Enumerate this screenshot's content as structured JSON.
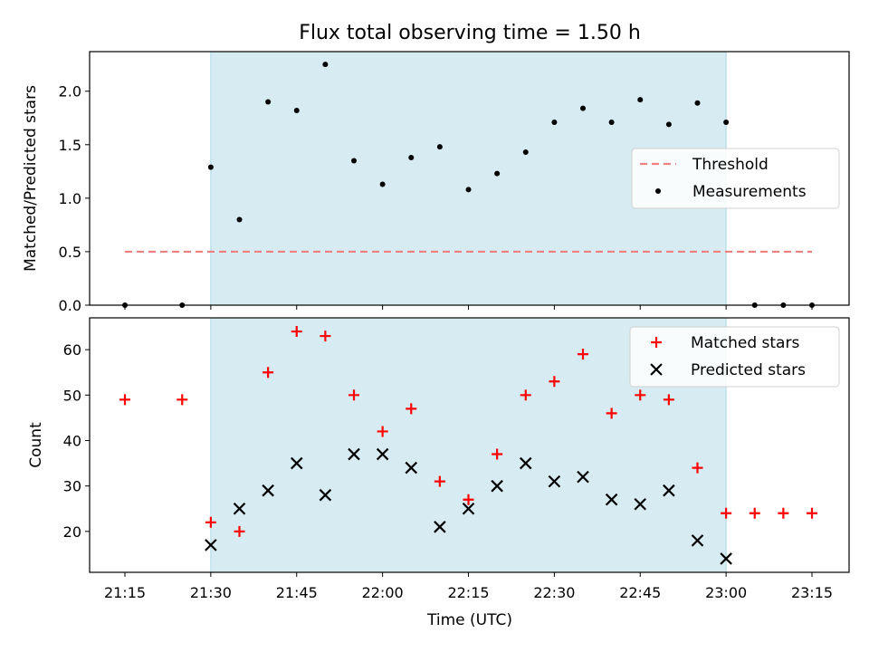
{
  "chart_data": {
    "type": "scatter",
    "title": "Flux total observing time = 1.50 h",
    "xlabel": "Time (UTC)",
    "x_ticks": [
      "21:15",
      "21:30",
      "21:45",
      "22:00",
      "22:15",
      "22:30",
      "22:45",
      "23:00",
      "23:15"
    ],
    "observing_window": {
      "start": "21:30",
      "end": "23:00",
      "color": "#add8e6"
    },
    "panels": [
      {
        "id": "ratio",
        "ylabel": "Matched/Predicted stars",
        "ylim": [
          0,
          2.37
        ],
        "y_ticks": [
          "0.0",
          "0.5",
          "1.0",
          "1.5",
          "2.0"
        ],
        "legend_position": "center-right",
        "series": [
          {
            "name": "Threshold",
            "kind": "line",
            "color": "#f08080",
            "dash": true,
            "x": [
              "21:15",
              "23:15"
            ],
            "y": [
              0.5,
              0.5
            ]
          },
          {
            "name": "Measurements",
            "kind": "dot",
            "color": "#000000",
            "x": [
              "21:15",
              "21:25",
              "21:30",
              "21:35",
              "21:40",
              "21:45",
              "21:50",
              "21:55",
              "22:00",
              "22:05",
              "22:10",
              "22:15",
              "22:20",
              "22:25",
              "22:30",
              "22:35",
              "22:40",
              "22:45",
              "22:50",
              "22:55",
              "23:00",
              "23:05",
              "23:10",
              "23:15"
            ],
            "y": [
              0,
              0,
              1.29,
              0.8,
              1.9,
              1.82,
              2.25,
              1.35,
              1.13,
              1.38,
              1.48,
              1.08,
              1.23,
              1.43,
              1.71,
              1.84,
              1.71,
              1.92,
              1.69,
              1.89,
              1.71,
              0,
              0,
              0
            ]
          }
        ]
      },
      {
        "id": "counts",
        "ylabel": "Count",
        "ylim": [
          11,
          67
        ],
        "y_ticks": [
          "20",
          "30",
          "40",
          "50",
          "60"
        ],
        "legend_position": "upper-right",
        "series": [
          {
            "name": "Matched stars",
            "kind": "plus",
            "color": "#ff0000",
            "x": [
              "21:15",
              "21:25",
              "21:30",
              "21:35",
              "21:40",
              "21:45",
              "21:50",
              "21:55",
              "22:00",
              "22:05",
              "22:10",
              "22:15",
              "22:20",
              "22:25",
              "22:30",
              "22:35",
              "22:40",
              "22:45",
              "22:50",
              "22:55",
              "23:00",
              "23:05",
              "23:10",
              "23:15"
            ],
            "y": [
              49,
              49,
              22,
              20,
              55,
              64,
              63,
              50,
              42,
              47,
              31,
              27,
              37,
              50,
              53,
              59,
              46,
              50,
              49,
              34,
              24,
              24,
              24,
              24
            ]
          },
          {
            "name": "Predicted stars",
            "kind": "cross",
            "color": "#000000",
            "x": [
              "21:30",
              "21:35",
              "21:40",
              "21:45",
              "21:50",
              "21:55",
              "22:00",
              "22:05",
              "22:10",
              "22:15",
              "22:20",
              "22:25",
              "22:30",
              "22:35",
              "22:40",
              "22:45",
              "22:50",
              "22:55",
              "23:00"
            ],
            "y": [
              17,
              25,
              29,
              35,
              28,
              37,
              37,
              34,
              21,
              25,
              30,
              35,
              31,
              32,
              27,
              26,
              29,
              18,
              14
            ]
          }
        ]
      }
    ]
  }
}
